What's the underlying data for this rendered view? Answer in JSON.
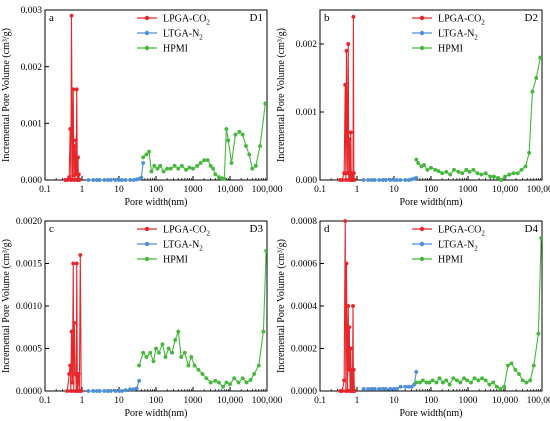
{
  "chart_data": [
    {
      "type": "line",
      "panel_label": "a",
      "sample": "D1",
      "xlabel": "Pore width(nm)",
      "ylabel": "Incremental Pore Volume (cm³/g)",
      "x_scale": "log",
      "xlim": [
        0.1,
        100000
      ],
      "ylim": [
        0,
        0.003
      ],
      "x_ticks": [
        0.1,
        1,
        10,
        100,
        1000,
        10000,
        100000
      ],
      "x_tick_labels": [
        "0.1",
        "1",
        "10",
        "100",
        "1000",
        "10,000",
        "100,000"
      ],
      "y_ticks": [
        0,
        0.001,
        0.002,
        0.003
      ],
      "y_tick_labels": [
        "0.000",
        "0.001",
        "0.002",
        "0.003"
      ],
      "legend_position": "top-center",
      "grid": false,
      "series": [
        {
          "name": "LPGA-CO2",
          "legend_main": "LPGA-CO",
          "legend_sub": "2",
          "color": "#e8262a",
          "x": [
            0.35,
            0.4,
            0.45,
            0.48,
            0.5,
            0.52,
            0.55,
            0.58,
            0.6,
            0.62,
            0.65,
            0.68,
            0.7,
            0.72,
            0.75,
            0.78,
            0.8,
            0.82,
            0.85
          ],
          "y": [
            0.0,
            0.0,
            5e-05,
            0.0009,
            0.0,
            0.0029,
            0.0,
            0.0016,
            8e-05,
            0.0006,
            0.0,
            0.0007,
            0.0001,
            0.0016,
            0.0,
            0.0004,
            0.0,
            0.0001,
            0.0
          ]
        },
        {
          "name": "LTGA-N2",
          "legend_main": "LTGA-N",
          "legend_sub": "2",
          "color": "#4f8fd6",
          "x": [
            1.5,
            2,
            2.5,
            3,
            4,
            5,
            6,
            8,
            10,
            12,
            15,
            20,
            25,
            30,
            35,
            40,
            45
          ],
          "y": [
            0.0,
            0.0,
            0.0,
            0.0,
            0.0,
            0.0,
            0.0,
            0.0,
            0.0,
            0.0,
            0.0,
            0.0,
            0.0,
            1e-05,
            2e-05,
            4e-05,
            0.0003
          ]
        },
        {
          "name": "HPMI",
          "legend_main": "HPMI",
          "legend_sub": "",
          "color": "#45b83b",
          "x": [
            45,
            55,
            65,
            75,
            90,
            110,
            130,
            160,
            200,
            250,
            320,
            400,
            500,
            650,
            800,
            1000,
            1300,
            1600,
            2000,
            2500,
            3000,
            3500,
            4000,
            5000,
            6000,
            7000,
            8000,
            9000,
            11000,
            14000,
            18000,
            22000,
            27000,
            33000,
            40000,
            50000,
            65000,
            90000
          ],
          "y": [
            0.0004,
            0.00045,
            0.0005,
            0.00015,
            0.00025,
            0.0002,
            0.00025,
            0.00015,
            0.0002,
            0.0002,
            0.00025,
            0.0002,
            0.00025,
            0.00018,
            0.00022,
            0.0002,
            0.00025,
            0.0003,
            0.00035,
            0.00035,
            0.00025,
            0.0002,
            0.0001,
            5e-05,
            3e-05,
            2e-05,
            0.0009,
            0.0007,
            0.0003,
            0.0008,
            0.00085,
            0.0008,
            0.0006,
            0.00045,
            0.0002,
            0.00025,
            0.0006,
            0.00135
          ]
        }
      ]
    },
    {
      "type": "line",
      "panel_label": "b",
      "sample": "D2",
      "xlabel": "Pore width(nm)",
      "ylabel": "Incremental Pore Volume (cm³/g)",
      "x_scale": "log",
      "xlim": [
        0.1,
        100000
      ],
      "ylim": [
        0,
        0.0025
      ],
      "x_ticks": [
        0.1,
        1,
        10,
        100,
        1000,
        10000,
        100000
      ],
      "x_tick_labels": [
        "0.1",
        "1",
        "10",
        "100",
        "1000",
        "10,000",
        "100,000"
      ],
      "y_ticks": [
        0,
        0.001,
        0.002
      ],
      "y_tick_labels": [
        "0.000",
        "0.001",
        "0.002"
      ],
      "legend_position": "top-center",
      "grid": false,
      "series": [
        {
          "name": "LPGA-CO2",
          "legend_main": "LPGA-CO",
          "legend_sub": "2",
          "color": "#e8262a",
          "x": [
            0.35,
            0.4,
            0.45,
            0.48,
            0.5,
            0.52,
            0.55,
            0.58,
            0.6,
            0.62,
            0.65,
            0.68,
            0.7,
            0.72,
            0.75,
            0.78,
            0.8,
            0.82,
            0.85
          ],
          "y": [
            0.0,
            0.0,
            0.0001,
            0.0014,
            0.0,
            0.0019,
            0.0001,
            0.002,
            0.0,
            0.0006,
            0.0,
            0.0007,
            0.0,
            0.0,
            0.0001,
            0.0,
            0.0024,
            0.0001,
            0.0
          ]
        },
        {
          "name": "LTGA-N2",
          "legend_main": "LTGA-N",
          "legend_sub": "2",
          "color": "#4f8fd6",
          "x": [
            1.5,
            2,
            2.5,
            3,
            4,
            5,
            6,
            8,
            10,
            12,
            15,
            20,
            25,
            30,
            35,
            40
          ],
          "y": [
            0.0,
            0.0,
            0.0,
            0.0,
            0.0,
            0.0,
            0.0,
            0.0,
            0.0,
            0.0,
            0.0,
            0.0,
            0.0,
            1e-05,
            2e-05,
            3e-05
          ]
        },
        {
          "name": "HPMI",
          "legend_main": "HPMI",
          "legend_sub": "",
          "color": "#45b83b",
          "x": [
            40,
            45,
            55,
            65,
            80,
            100,
            130,
            160,
            200,
            260,
            330,
            420,
            550,
            700,
            900,
            1100,
            1400,
            1800,
            2300,
            3000,
            4000,
            5000,
            6500,
            8000,
            10000,
            13000,
            17000,
            22000,
            28000,
            36000,
            45000,
            55000,
            70000,
            90000
          ],
          "y": [
            0.0003,
            0.00025,
            0.0002,
            0.00022,
            0.00015,
            0.00018,
            0.00015,
            0.00013,
            0.0001,
            0.00012,
            8e-05,
            0.00015,
            0.00012,
            0.0001,
            0.00015,
            0.00012,
            0.00015,
            0.0001,
            8e-05,
            0.0001,
            5e-05,
            5e-05,
            3e-05,
            0.0,
            5e-05,
            8e-05,
            0.0001,
            0.0001,
            0.00015,
            0.0002,
            0.0004,
            0.0013,
            0.0015,
            0.0018
          ]
        }
      ]
    },
    {
      "type": "line",
      "panel_label": "c",
      "sample": "D3",
      "xlabel": "Pore width(nm)",
      "ylabel": "Incremental Pore Volume (cm³/g)",
      "x_scale": "log",
      "xlim": [
        0.1,
        100000
      ],
      "ylim": [
        0,
        0.002
      ],
      "x_ticks": [
        0.1,
        1,
        10,
        100,
        1000,
        10000,
        100000
      ],
      "x_tick_labels": [
        "0.1",
        "1",
        "10",
        "100",
        "1000",
        "10,000",
        "100,000"
      ],
      "y_ticks": [
        0,
        0.0005,
        0.001,
        0.0015,
        0.002
      ],
      "y_tick_labels": [
        "0.0000",
        "0.0005",
        "0.0010",
        "0.0015",
        "0.0020"
      ],
      "legend_position": "top-center",
      "grid": false,
      "series": [
        {
          "name": "LPGA-CO2",
          "legend_main": "LPGA-CO",
          "legend_sub": "2",
          "color": "#e8262a",
          "x": [
            0.4,
            0.45,
            0.48,
            0.5,
            0.52,
            0.55,
            0.58,
            0.6,
            0.62,
            0.65,
            0.68,
            0.7,
            0.72,
            0.75,
            0.8,
            0.85,
            0.9,
            0.95
          ],
          "y": [
            0.0,
            0.0002,
            0.0003,
            0.0,
            0.0007,
            0.0001,
            0.0015,
            0.0,
            0.0008,
            0.0002,
            0.0002,
            0.0,
            0.0015,
            0.0,
            0.0002,
            0.0,
            0.0016,
            0.0
          ]
        },
        {
          "name": "LTGA-N2",
          "legend_main": "LTGA-N",
          "legend_sub": "2",
          "color": "#4f8fd6",
          "x": [
            1.5,
            2,
            2.5,
            3,
            4,
            5,
            6,
            8,
            10,
            12,
            15,
            20,
            25,
            30,
            35
          ],
          "y": [
            0.0,
            0.0,
            0.0,
            0.0,
            0.0,
            0.0,
            0.0,
            0.0,
            0.0,
            0.0,
            1e-05,
            2e-05,
            2e-05,
            3e-05,
            0.00012
          ]
        },
        {
          "name": "HPMI",
          "legend_main": "HPMI",
          "legend_sub": "",
          "color": "#45b83b",
          "x": [
            35,
            45,
            55,
            70,
            85,
            100,
            120,
            150,
            180,
            220,
            270,
            330,
            400,
            480,
            600,
            750,
            900,
            1100,
            1400,
            1800,
            2300,
            3000,
            4000,
            5000,
            6500,
            8000,
            10000,
            13000,
            17000,
            22000,
            28000,
            36000,
            45000,
            60000,
            80000,
            95000
          ],
          "y": [
            0.0003,
            0.00045,
            0.0004,
            0.00045,
            0.00035,
            0.0005,
            0.00045,
            0.00055,
            0.0004,
            0.0005,
            0.00045,
            0.0006,
            0.0007,
            0.0004,
            0.00045,
            0.0003,
            0.0004,
            0.0003,
            0.00025,
            0.0002,
            0.00015,
            0.0001,
            0.00012,
            0.0001,
            5e-05,
            0.0001,
            8e-05,
            0.00015,
            0.0001,
            0.00015,
            0.0001,
            0.00013,
            0.0002,
            0.0003,
            0.0007,
            0.00165
          ]
        }
      ]
    },
    {
      "type": "line",
      "panel_label": "d",
      "sample": "D4",
      "xlabel": "Pore width(nm)",
      "ylabel": "Incremental Pore Volume (cm³/g)",
      "x_scale": "log",
      "xlim": [
        0.1,
        100000
      ],
      "ylim": [
        0,
        0.0008
      ],
      "x_ticks": [
        0.1,
        1,
        10,
        100,
        1000,
        10000,
        100000
      ],
      "x_tick_labels": [
        "0.1",
        "1",
        "10",
        "100",
        "1000",
        "10,000",
        "100,000"
      ],
      "y_ticks": [
        0,
        0.0002,
        0.0004,
        0.0006,
        0.0008
      ],
      "y_tick_labels": [
        "0.0000",
        "0.0002",
        "0.0004",
        "0.0006",
        "0.0008"
      ],
      "legend_position": "top-center",
      "grid": false,
      "series": [
        {
          "name": "LPGA-CO2",
          "legend_main": "LPGA-CO",
          "legend_sub": "2",
          "color": "#e8262a",
          "x": [
            0.35,
            0.4,
            0.45,
            0.48,
            0.5,
            0.52,
            0.55,
            0.58,
            0.6,
            0.62,
            0.65,
            0.68,
            0.7,
            0.72,
            0.75,
            0.78,
            0.8,
            0.82,
            0.85
          ],
          "y": [
            0.0,
            0.0,
            5e-05,
            0.0008,
            0.0,
            0.0006,
            0.0,
            0.0004,
            0.0001,
            0.0003,
            0.0,
            0.0002,
            0.0,
            0.0001,
            0.0,
            0.0004,
            0.0,
            0.0001,
            0.0
          ]
        },
        {
          "name": "LTGA-N2",
          "legend_main": "LTGA-N",
          "legend_sub": "2",
          "color": "#4f8fd6",
          "x": [
            1.5,
            2,
            2.5,
            3,
            4,
            5,
            6,
            8,
            10,
            12,
            15,
            20,
            25,
            30,
            35,
            40
          ],
          "y": [
            1e-05,
            1e-05,
            1e-05,
            1e-05,
            1e-05,
            1e-05,
            1e-05,
            1e-05,
            1e-05,
            1e-05,
            2e-05,
            2e-05,
            2e-05,
            2e-05,
            3e-05,
            9e-05
          ]
        },
        {
          "name": "HPMI",
          "legend_main": "HPMI",
          "legend_sub": "",
          "color": "#45b83b",
          "x": [
            40,
            50,
            60,
            75,
            90,
            110,
            140,
            170,
            210,
            260,
            320,
            400,
            500,
            620,
            780,
            950,
            1200,
            1500,
            1900,
            2400,
            3000,
            3800,
            4800,
            6000,
            7500,
            9500,
            12000,
            15000,
            19000,
            24000,
            30000,
            38000,
            48000,
            60000,
            80000,
            95000
          ],
          "y": [
            4e-05,
            4e-05,
            5e-05,
            4e-05,
            4e-05,
            5e-05,
            4e-05,
            6e-05,
            4e-05,
            5e-05,
            3e-05,
            6e-05,
            5e-05,
            4e-05,
            6e-05,
            5e-05,
            4e-05,
            6e-05,
            5e-05,
            6e-05,
            5e-05,
            3e-05,
            4e-05,
            2e-05,
            1e-05,
            2e-05,
            0.00012,
            0.00013,
            0.0001,
            8e-05,
            5e-05,
            4e-05,
            5e-05,
            0.00012,
            0.00027,
            0.00072
          ]
        }
      ]
    }
  ]
}
